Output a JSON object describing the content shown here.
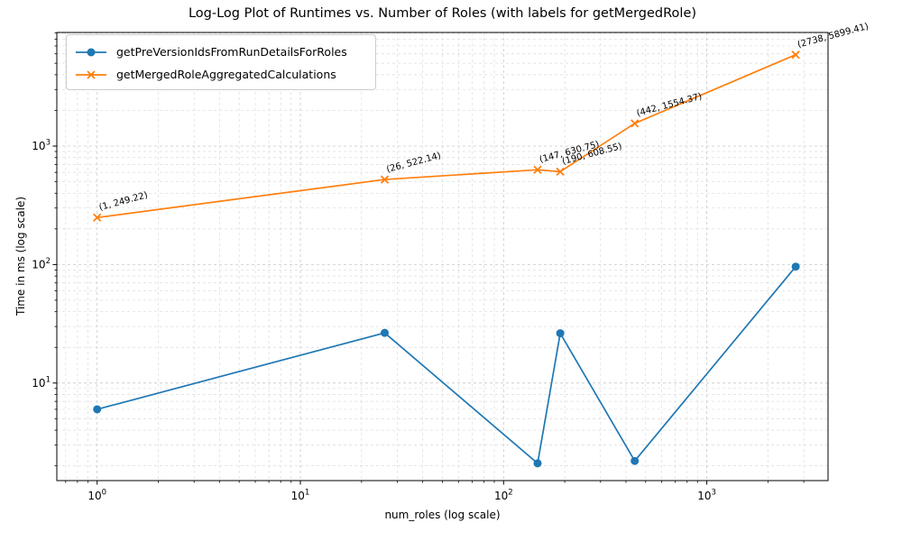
{
  "chart_data": {
    "type": "line",
    "title": "Log-Log Plot of Runtimes vs. Number of Roles (with labels for getMergedRole)",
    "xlabel": "num_roles (log scale)",
    "ylabel": "Time in ms (log scale)",
    "x_scale": "log",
    "y_scale": "log",
    "xlim": [
      0.63,
      3950
    ],
    "ylim": [
      1.5,
      9100
    ],
    "grid": {
      "which": "both",
      "style": "dashed"
    },
    "legend_position": "upper-left",
    "x": [
      1,
      26,
      147,
      190,
      442,
      2738
    ],
    "x_ticks": [
      1,
      10,
      100,
      1000
    ],
    "y_ticks": [
      10,
      100,
      1000
    ],
    "series": [
      {
        "name": "getPreVersionIdsFromRunDetailsForRoles",
        "color": "#1f77b4",
        "marker": "circle",
        "values": [
          6.0,
          26.5,
          2.1,
          26.3,
          2.2,
          96
        ]
      },
      {
        "name": "getMergedRoleAggregatedCalculations",
        "color": "#ff7f0e",
        "marker": "x",
        "values": [
          249.22,
          522.14,
          630.75,
          608.55,
          1554.37,
          5899.41
        ],
        "point_labels": [
          "(1, 249.22)",
          "(26, 522.14)",
          "(147, 630.75)",
          "(190, 608.55)",
          "(442, 1554.37)",
          "(2738, 5899.41)"
        ]
      }
    ],
    "colors": {
      "grid_major": "#c8c8c8",
      "grid_minor": "#dbdbdb",
      "spine": "#000000",
      "text": "#000000"
    }
  }
}
